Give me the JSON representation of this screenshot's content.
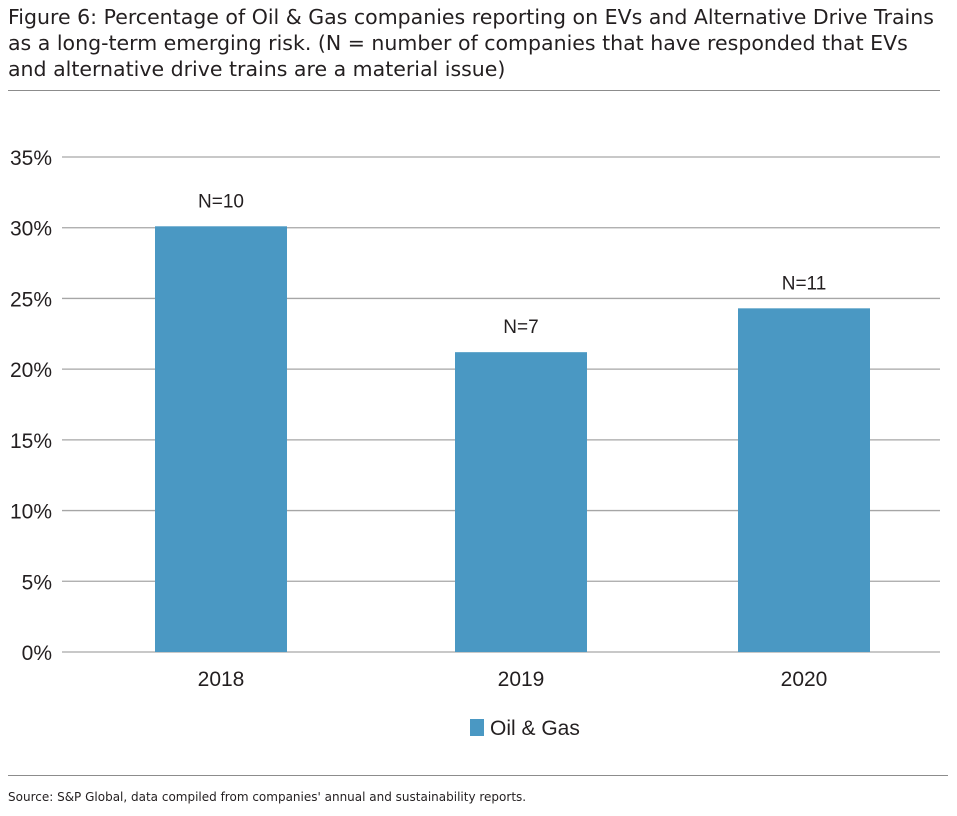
{
  "title": "Figure 6: Percentage of Oil & Gas companies reporting on EVs and Alternative Drive Trains as a long-term emerging risk. (N = number of companies that have responded that EVs and alternative drive trains are a material issue)",
  "source": "Source: S&P Global, data compiled from companies' annual and sustainability reports.",
  "colors": {
    "bar": "#4a98c3",
    "grid": "#a6a6a6"
  },
  "chart_data": {
    "type": "bar",
    "categories": [
      "2018",
      "2019",
      "2020"
    ],
    "series": [
      {
        "name": "Oil & Gas",
        "values": [
          30.1,
          21.2,
          24.3
        ],
        "data_labels": [
          "N=10",
          "N=7",
          "N=11"
        ]
      }
    ],
    "ylim": [
      0,
      35
    ],
    "yticks": [
      0,
      5,
      10,
      15,
      20,
      25,
      30,
      35
    ],
    "ytick_labels": [
      "0%",
      "5%",
      "10%",
      "15%",
      "20%",
      "25%",
      "30%",
      "35%"
    ],
    "grid": true,
    "legend_position": "bottom-center"
  }
}
